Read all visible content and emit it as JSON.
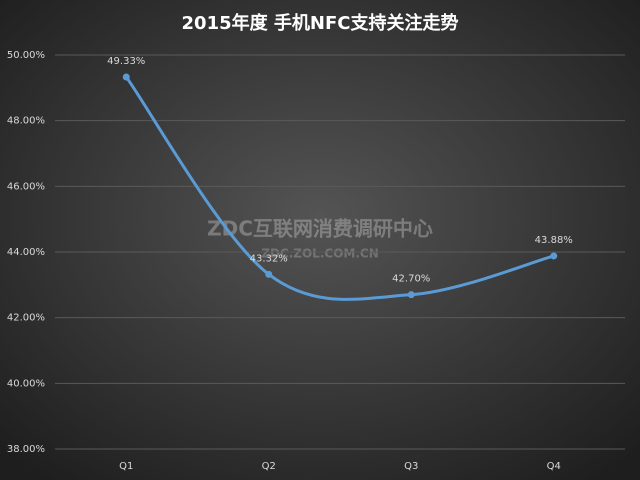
{
  "chart_data": {
    "type": "line",
    "title": "2015年度 手机NFC支持关注走势",
    "categories": [
      "Q1",
      "Q2",
      "Q3",
      "Q4"
    ],
    "series": [
      {
        "color": "#5b9bd5",
        "values": [
          49.33,
          43.32,
          42.7,
          43.88
        ],
        "value_labels": [
          "49.33%",
          "43.32%",
          "42.70%",
          "43.88%"
        ]
      }
    ],
    "ylim": [
      38,
      50
    ],
    "yticks": [
      {
        "value": 38,
        "label": "38.00%"
      },
      {
        "value": 40,
        "label": "40.00%"
      },
      {
        "value": 42,
        "label": "42.00%"
      },
      {
        "value": 44,
        "label": "44.00%"
      },
      {
        "value": 46,
        "label": "46.00%"
      },
      {
        "value": 48,
        "label": "48.00%"
      },
      {
        "value": 50,
        "label": "50.00%"
      }
    ],
    "grid": true,
    "smooth": true,
    "watermark": [
      "ZDC互联网消费调研中心",
      "ZDC.ZOL.COM.CN"
    ]
  }
}
